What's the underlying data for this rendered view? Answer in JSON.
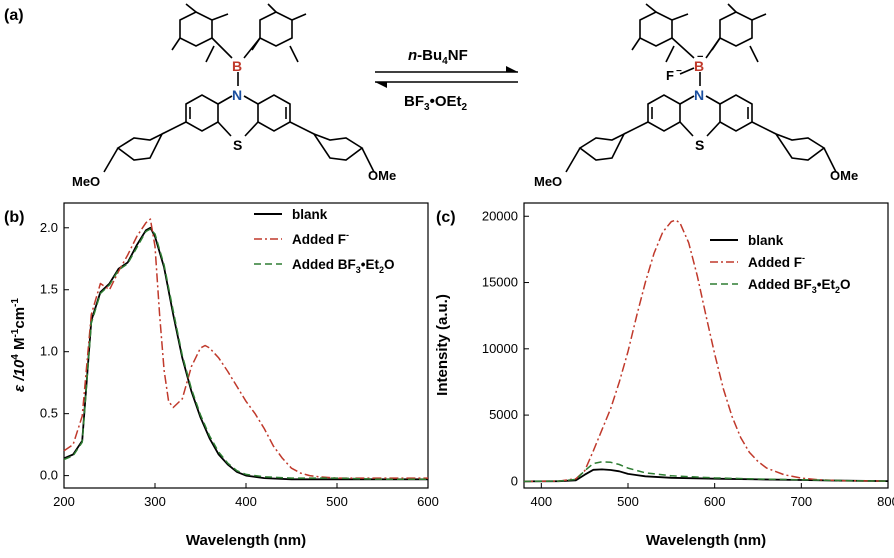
{
  "panel_labels": {
    "a": "(a)",
    "b": "(b)",
    "c": "(c)"
  },
  "scheme": {
    "reagent_forward_prefix": "n",
    "reagent_forward_rest": "-Bu",
    "reagent_forward_sub": "4",
    "reagent_forward_end": "NF",
    "reagent_reverse_main": "BF",
    "reagent_reverse_sub1": "3",
    "reagent_reverse_dot": "•",
    "reagent_reverse_mid": "OEt",
    "reagent_reverse_sub2": "2",
    "atom_B": "B",
    "atom_N": "N",
    "atom_S": "S",
    "atom_F": "F",
    "minus": "−",
    "meo": "MeO",
    "ome": "OMe"
  },
  "chart_data": [
    {
      "type": "line",
      "panel": "(b)",
      "xlabel": "Wavelength (nm)",
      "ylabel_prefix": "ε /10",
      "ylabel_sup1": "4",
      "ylabel_mid": " M",
      "ylabel_sup2": "-1",
      "ylabel_end": "cm",
      "ylabel_sup3": "-1",
      "xlim": [
        200,
        600
      ],
      "ylim": [
        -0.1,
        2.2
      ],
      "xticks": [
        "200",
        "300",
        "400",
        "500",
        "600"
      ],
      "yticks": [
        "0.0",
        "0.5",
        "1.0",
        "1.5",
        "2.0"
      ],
      "legend_position": "top-right",
      "series": [
        {
          "name": "blank",
          "color": "#000000",
          "style": "solid",
          "x": [
            200,
            210,
            220,
            230,
            240,
            250,
            260,
            270,
            280,
            290,
            295,
            300,
            310,
            320,
            330,
            340,
            350,
            360,
            370,
            380,
            390,
            400,
            420,
            450,
            500,
            550,
            600
          ],
          "y": [
            0.14,
            0.17,
            0.28,
            1.25,
            1.48,
            1.55,
            1.67,
            1.72,
            1.86,
            1.98,
            2.0,
            1.93,
            1.68,
            1.3,
            0.95,
            0.68,
            0.47,
            0.3,
            0.17,
            0.09,
            0.03,
            0.0,
            -0.02,
            -0.03,
            -0.03,
            -0.03,
            -0.03
          ]
        },
        {
          "name": "Added F",
          "name_sup": "-",
          "color": "#c0392b",
          "style": "dashdot",
          "x": [
            200,
            210,
            220,
            230,
            240,
            250,
            260,
            270,
            280,
            290,
            295,
            300,
            305,
            310,
            315,
            320,
            330,
            340,
            350,
            355,
            360,
            370,
            380,
            390,
            400,
            410,
            420,
            430,
            440,
            450,
            460,
            470,
            480,
            500,
            550,
            600
          ],
          "y": [
            0.2,
            0.25,
            0.48,
            1.3,
            1.55,
            1.5,
            1.65,
            1.78,
            1.93,
            2.04,
            2.07,
            1.85,
            1.3,
            0.85,
            0.6,
            0.55,
            0.62,
            0.88,
            1.03,
            1.05,
            1.03,
            0.95,
            0.84,
            0.72,
            0.6,
            0.5,
            0.38,
            0.24,
            0.14,
            0.06,
            0.02,
            0.0,
            -0.01,
            -0.02,
            -0.02,
            -0.02
          ]
        },
        {
          "name_main": "Added BF",
          "name_sub1": "3",
          "name_mid": "•Et",
          "name_sub2": "2",
          "name_end": "O",
          "color": "#2e7d32",
          "style": "dashed",
          "x": [
            200,
            210,
            220,
            230,
            240,
            250,
            260,
            270,
            280,
            290,
            295,
            300,
            310,
            320,
            330,
            340,
            350,
            360,
            370,
            380,
            390,
            400,
            420,
            450,
            500,
            550,
            600
          ],
          "y": [
            0.13,
            0.16,
            0.27,
            1.23,
            1.47,
            1.54,
            1.66,
            1.71,
            1.84,
            1.97,
            1.99,
            1.95,
            1.7,
            1.33,
            0.97,
            0.7,
            0.49,
            0.32,
            0.19,
            0.1,
            0.04,
            0.01,
            -0.01,
            -0.02,
            -0.02,
            -0.03,
            -0.03
          ]
        }
      ]
    },
    {
      "type": "line",
      "panel": "(c)",
      "xlabel": "Wavelength (nm)",
      "ylabel": "Intensity (a.u.)",
      "xlim": [
        380,
        800
      ],
      "ylim": [
        -500,
        21000
      ],
      "xticks": [
        "400",
        "500",
        "600",
        "700",
        "800"
      ],
      "yticks": [
        "0",
        "5000",
        "10000",
        "15000",
        "20000"
      ],
      "legend_position": "top-right",
      "series": [
        {
          "name": "blank",
          "color": "#000000",
          "style": "solid",
          "x": [
            380,
            420,
            440,
            450,
            460,
            470,
            480,
            490,
            500,
            520,
            550,
            600,
            650,
            700,
            750,
            800
          ],
          "y": [
            0,
            10,
            80,
            500,
            870,
            900,
            860,
            760,
            560,
            380,
            270,
            200,
            150,
            100,
            50,
            20
          ]
        },
        {
          "name": "Added F",
          "name_sup": "-",
          "color": "#c0392b",
          "style": "dashdot",
          "x": [
            380,
            420,
            440,
            450,
            460,
            470,
            480,
            490,
            500,
            510,
            520,
            530,
            540,
            550,
            555,
            560,
            570,
            580,
            590,
            600,
            610,
            620,
            630,
            640,
            650,
            660,
            680,
            700,
            720,
            750,
            800
          ],
          "y": [
            0,
            20,
            200,
            800,
            2300,
            3900,
            5500,
            7500,
            9800,
            12500,
            15000,
            17200,
            18800,
            19600,
            19700,
            19500,
            18000,
            15500,
            12500,
            9600,
            7000,
            4900,
            3300,
            2200,
            1500,
            1000,
            500,
            250,
            120,
            50,
            20
          ]
        },
        {
          "name_main": "Added BF",
          "name_sub1": "3",
          "name_mid": "•Et",
          "name_sub2": "2",
          "name_end": "O",
          "color": "#2e7d32",
          "style": "dashed",
          "x": [
            380,
            420,
            440,
            450,
            460,
            470,
            480,
            490,
            500,
            520,
            550,
            600,
            650,
            700,
            750,
            800
          ],
          "y": [
            0,
            20,
            150,
            800,
            1350,
            1480,
            1440,
            1270,
            1000,
            650,
            420,
            260,
            180,
            120,
            60,
            20
          ]
        }
      ]
    }
  ]
}
